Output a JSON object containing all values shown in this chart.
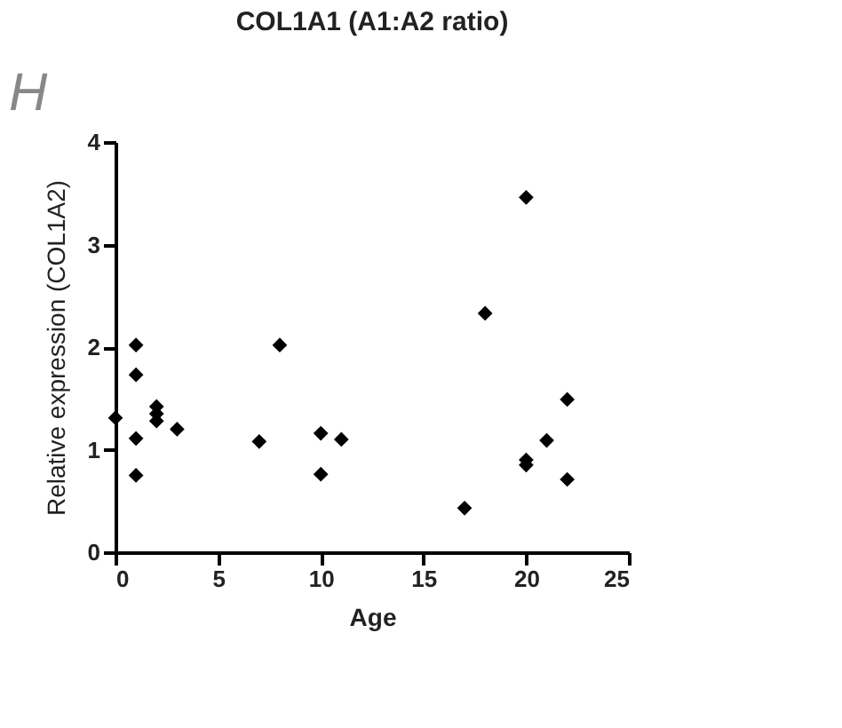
{
  "chart_data": {
    "type": "scatter",
    "title": "COL1A1 (A1:A2 ratio)",
    "xlabel": "Age",
    "ylabel": "Relative expression (COL1A2)",
    "annotations": [
      "H"
    ],
    "x": [
      0,
      1,
      1,
      1,
      1,
      2,
      2,
      2,
      3,
      7,
      8,
      10,
      10,
      11,
      17,
      18,
      20,
      20,
      20,
      21,
      22,
      22
    ],
    "series": [
      {
        "color": "#000000",
        "values": [
          1.31,
          2.02,
          1.73,
          1.11,
          0.75,
          1.42,
          1.35,
          1.28,
          1.2,
          1.08,
          2.02,
          1.16,
          0.76,
          1.1,
          0.43,
          2.33,
          3.46,
          0.9,
          0.85,
          1.09,
          1.49,
          0.71
        ]
      }
    ],
    "xlim": [
      0,
      25
    ],
    "ylim": [
      0,
      4
    ],
    "xticks": [
      0,
      5,
      10,
      15,
      20,
      25
    ],
    "yticks": [
      0,
      1,
      2,
      3,
      4
    ],
    "marker": "diamond",
    "grid": false,
    "legend": false
  }
}
